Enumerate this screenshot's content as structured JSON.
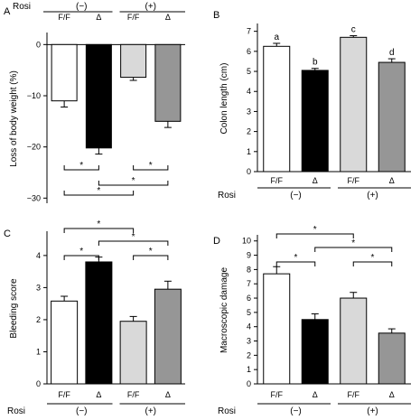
{
  "figure": {
    "colors": {
      "F/F (-)": "#ffffff",
      "Δ (-)": "#000000",
      "F/F (+)": "#d9d9d9",
      "Δ (+)": "#969696"
    },
    "rosi_label": "Rosi",
    "group_minus": "(−)",
    "group_plus": "(+)"
  },
  "chart_data": [
    {
      "panel": "A",
      "type": "bar",
      "categories": [
        "F/F",
        "Δ",
        "F/F",
        "Δ"
      ],
      "groups": [
        "(−)",
        "(+)"
      ],
      "values": [
        -11,
        -20.2,
        -6.4,
        -15
      ],
      "errors": [
        1.2,
        1.2,
        0.6,
        1.2
      ],
      "ylabel": "Loss of body weight (%)",
      "ylim": [
        -31,
        2
      ],
      "yticks": [
        0,
        -10,
        -20,
        -30
      ],
      "significance": [
        {
          "from": 0,
          "to": 1,
          "label": "*"
        },
        {
          "from": 2,
          "to": 3,
          "label": "*"
        },
        {
          "from": 1,
          "to": 3,
          "label": "*"
        },
        {
          "from": 0,
          "to": 2,
          "label": "*"
        }
      ]
    },
    {
      "panel": "B",
      "type": "bar",
      "categories": [
        "F/F",
        "Δ",
        "F/F",
        "Δ"
      ],
      "groups": [
        "(−)",
        "(+)"
      ],
      "values": [
        6.25,
        5.05,
        6.7,
        5.45
      ],
      "errors": [
        0.15,
        0.1,
        0.08,
        0.18
      ],
      "annotations": [
        "a",
        "b",
        "c",
        "d"
      ],
      "ylabel": "Colon length (cm)",
      "ylim": [
        0,
        7.3
      ],
      "yticks": [
        0,
        1,
        2,
        3,
        4,
        5,
        6,
        7
      ]
    },
    {
      "panel": "C",
      "type": "bar",
      "categories": [
        "F/F",
        "Δ",
        "F/F",
        "Δ"
      ],
      "groups": [
        "(−)",
        "(+)"
      ],
      "values": [
        2.58,
        3.8,
        1.95,
        2.95
      ],
      "errors": [
        0.15,
        0.15,
        0.15,
        0.25
      ],
      "ylabel": "Bleeding score",
      "ylim": [
        0,
        4.7
      ],
      "yticks": [
        0,
        1,
        2,
        3,
        4
      ],
      "significance": [
        {
          "from": 0,
          "to": 2,
          "label": "*"
        },
        {
          "from": 1,
          "to": 3,
          "label": "*"
        },
        {
          "from": 0,
          "to": 1,
          "label": "*"
        },
        {
          "from": 2,
          "to": 3,
          "label": "*"
        }
      ]
    },
    {
      "panel": "D",
      "type": "bar",
      "categories": [
        "F/F",
        "Δ",
        "F/F",
        "Δ"
      ],
      "groups": [
        "(−)",
        "(+)"
      ],
      "values": [
        7.7,
        4.5,
        6.0,
        3.55
      ],
      "errors": [
        0.5,
        0.4,
        0.4,
        0.3
      ],
      "ylabel": "Macroscopic damage",
      "ylim": [
        0,
        10.3
      ],
      "yticks": [
        0,
        1,
        2,
        3,
        4,
        5,
        6,
        7,
        8,
        9,
        10
      ],
      "significance": [
        {
          "from": 0,
          "to": 2,
          "label": "*"
        },
        {
          "from": 1,
          "to": 3,
          "label": "*"
        },
        {
          "from": 0,
          "to": 1,
          "label": "*"
        },
        {
          "from": 2,
          "to": 3,
          "label": "*"
        }
      ]
    }
  ]
}
